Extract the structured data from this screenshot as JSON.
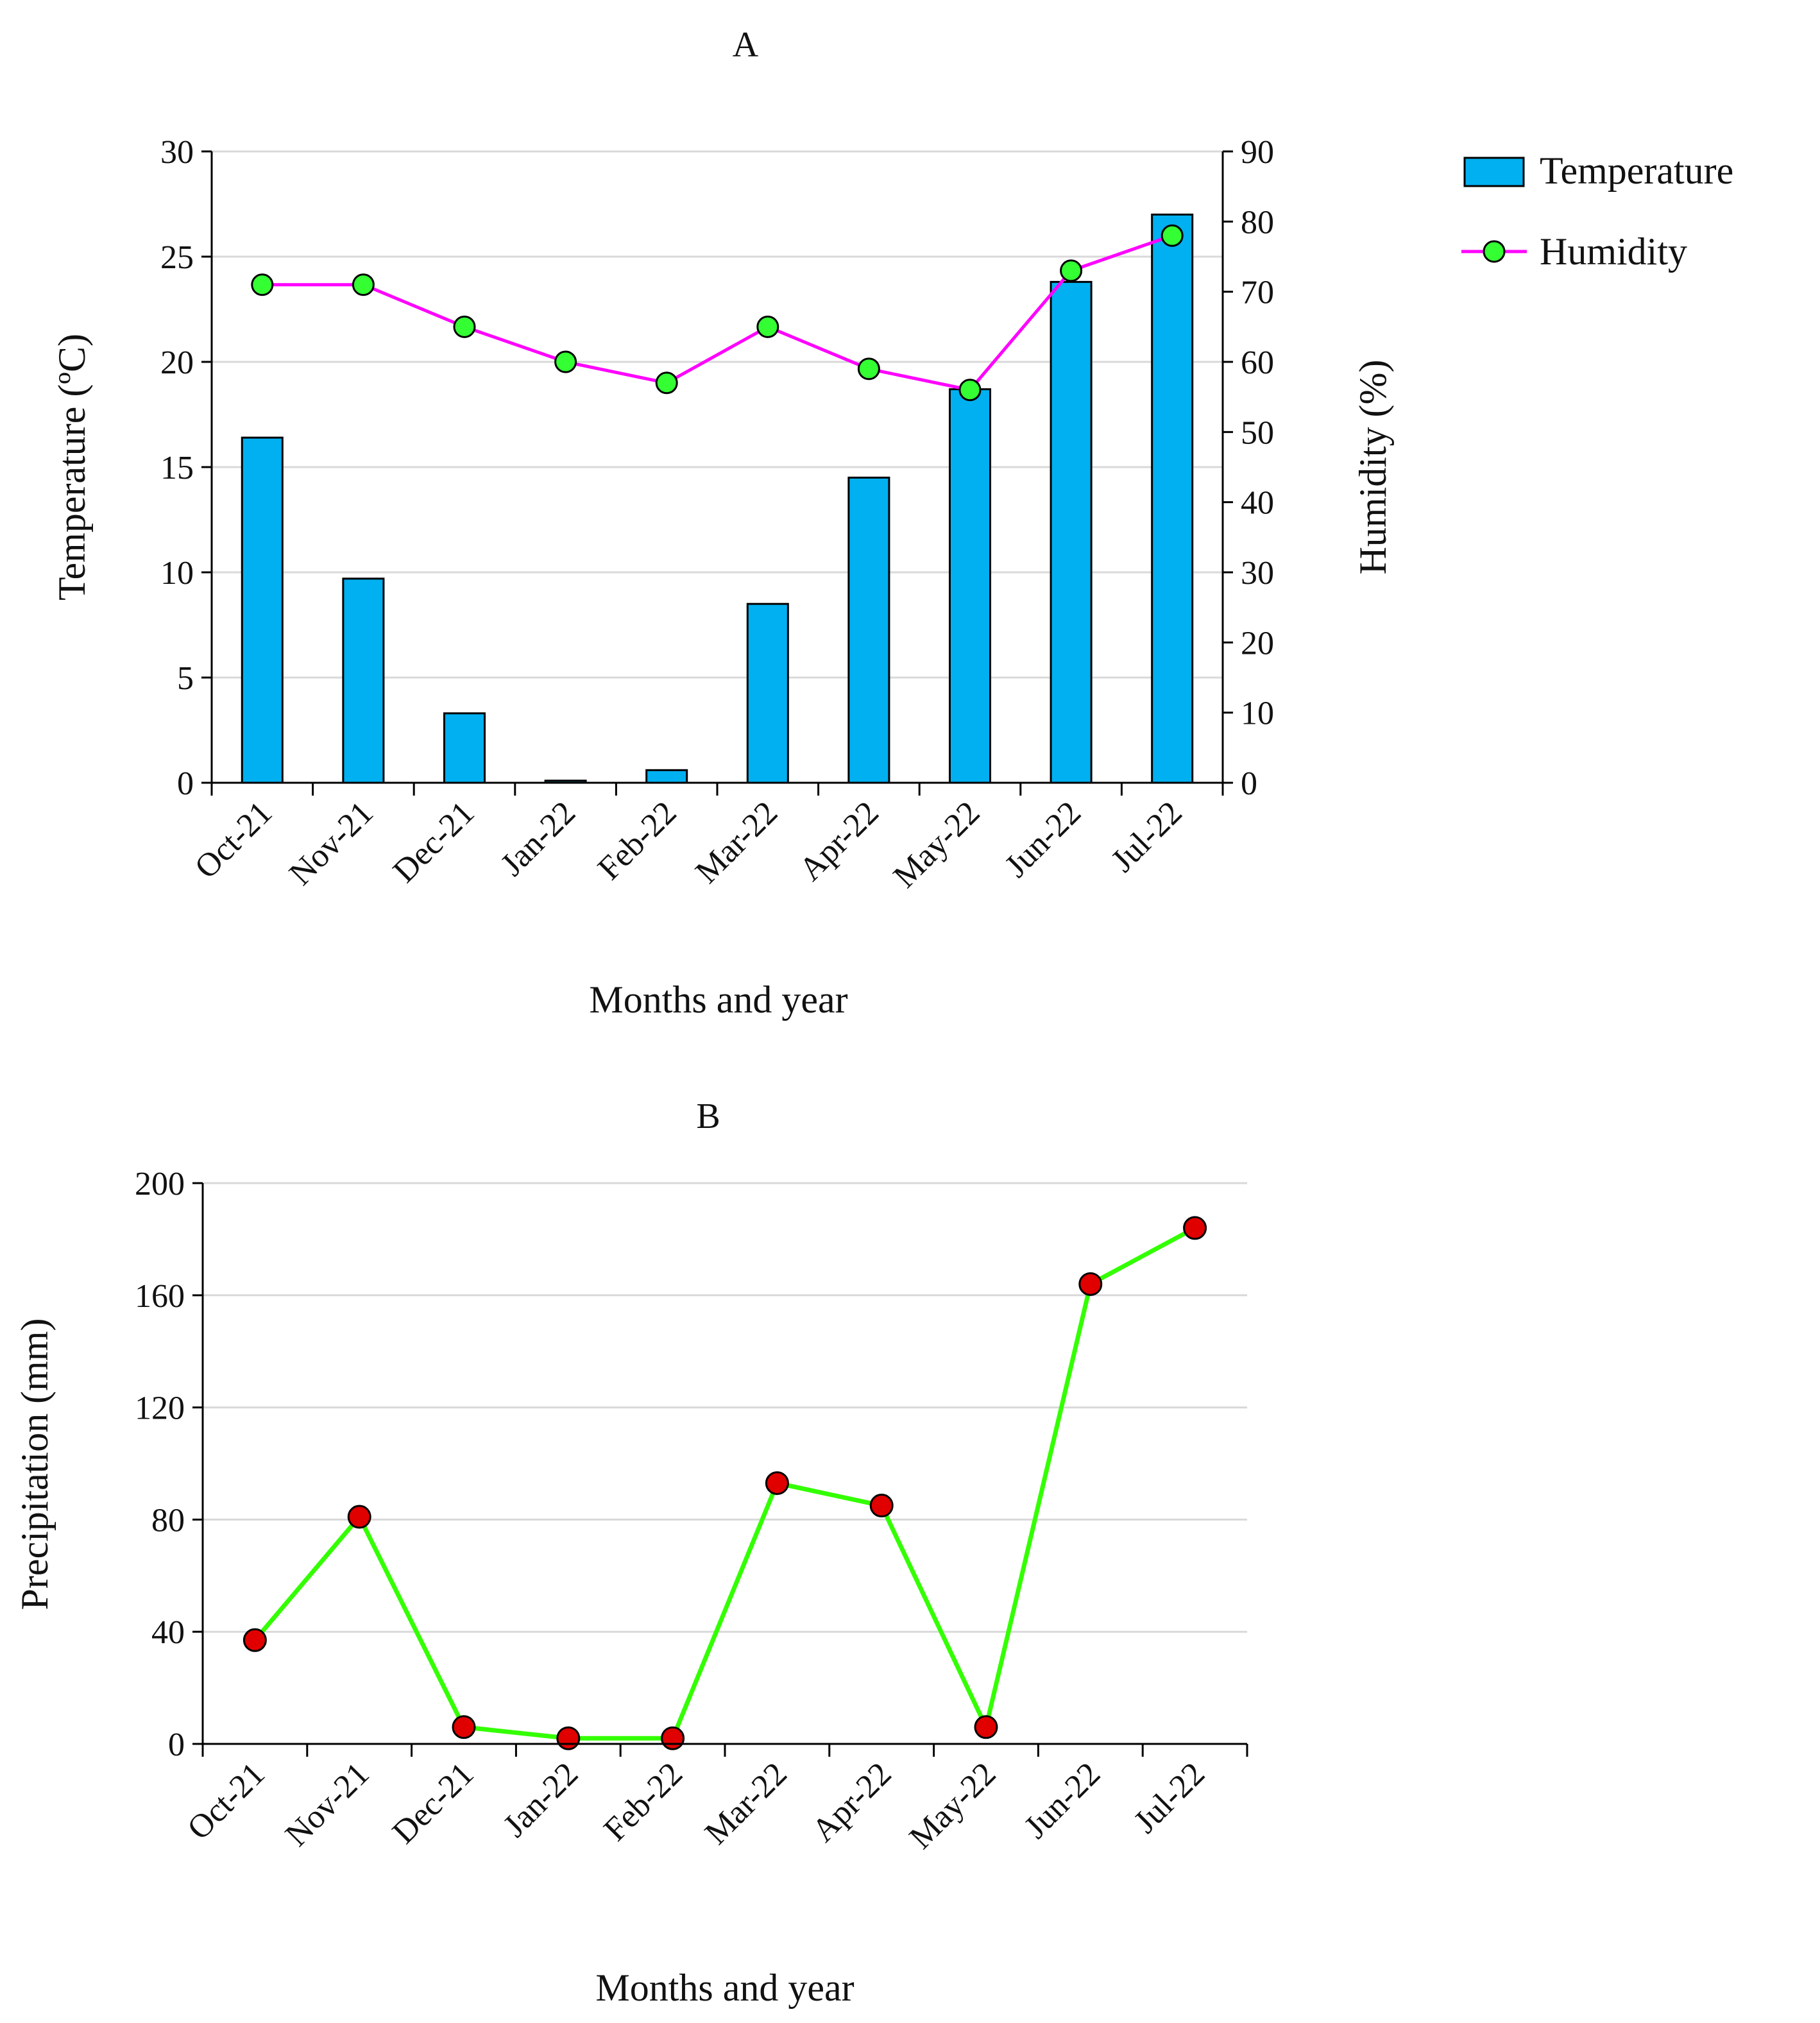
{
  "colors": {
    "bar_fill": "#00b0f0",
    "bar_stroke": "#000000",
    "humidity_line": "#ff00ff",
    "humidity_marker": "#33ff33",
    "precip_line": "#33ff00",
    "precip_marker": "#e00000",
    "gridline": "#d9d9d9"
  },
  "chart_data": [
    {
      "panel": "A",
      "type": "bar+line",
      "title": "A",
      "categories": [
        "Oct-21",
        "Nov-21",
        "Dec-21",
        "Jan-22",
        "Feb-22",
        "Mar-22",
        "Apr-22",
        "May-22",
        "Jun-22",
        "Jul-22"
      ],
      "xlabel": "Months and year",
      "ylabel": "Temperature (ºC)",
      "y2label": "Humidity (%)",
      "ylim": [
        0,
        30
      ],
      "yticks": [
        0,
        5,
        10,
        15,
        20,
        25,
        30
      ],
      "y2lim": [
        0,
        90
      ],
      "y2ticks": [
        0,
        10,
        20,
        30,
        40,
        50,
        60,
        70,
        80,
        90
      ],
      "grid": true,
      "legend_position": "right",
      "series": [
        {
          "name": "Temperature",
          "type": "bar",
          "axis": "left",
          "values": [
            16.4,
            9.7,
            3.3,
            0.1,
            0.6,
            8.5,
            14.5,
            18.7,
            23.8,
            27.0
          ]
        },
        {
          "name": "Humidity",
          "type": "line",
          "axis": "right",
          "values": [
            71,
            71,
            65,
            60,
            57,
            65,
            59,
            56,
            73,
            78
          ]
        }
      ]
    },
    {
      "panel": "B",
      "type": "line",
      "title": "B",
      "categories": [
        "Oct-21",
        "Nov-21",
        "Dec-21",
        "Jan-22",
        "Feb-22",
        "Mar-22",
        "Apr-22",
        "May-22",
        "Jun-22",
        "Jul-22"
      ],
      "xlabel": "Months and year",
      "ylabel": "Precipitation (mm)",
      "ylim": [
        0,
        200
      ],
      "yticks": [
        0,
        40,
        80,
        120,
        160,
        200
      ],
      "grid": true,
      "series": [
        {
          "name": "Precipitation",
          "values": [
            37,
            81,
            6,
            2,
            2,
            93,
            85,
            6,
            164,
            184
          ]
        }
      ]
    }
  ]
}
